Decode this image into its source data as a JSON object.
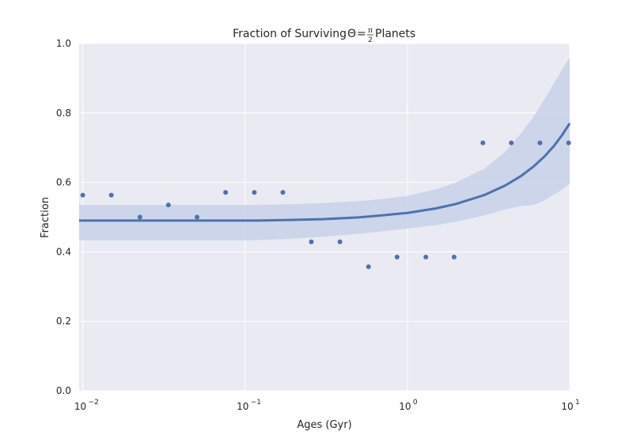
{
  "chart_data": {
    "type": "scatter",
    "title_prefix": "Fraction of Surviving ",
    "title_theta": "Θ",
    "title_eq": "=",
    "title_frac_num": "π",
    "title_frac_den": "2",
    "title_suffix": " Planets",
    "xlabel": "Ages (Gyr)",
    "ylabel": "Fraction",
    "xscale": "log",
    "xlim": [
      0.0095,
      10
    ],
    "ylim": [
      0.0,
      1.0
    ],
    "x_ticks": [
      {
        "value": 0.01,
        "base": "10",
        "exp": "−2"
      },
      {
        "value": 0.1,
        "base": "10",
        "exp": "−1"
      },
      {
        "value": 1,
        "base": "10",
        "exp": "0"
      },
      {
        "value": 10,
        "base": "10",
        "exp": "1"
      }
    ],
    "y_ticks": [
      "0.0",
      "0.2",
      "0.4",
      "0.6",
      "0.8",
      "1.0"
    ],
    "grid": true,
    "colors": {
      "background": "#eaeaf2",
      "grid": "#ffffff",
      "points": "#4c72b0",
      "fit": "#4c72b0",
      "band": "#c2cde6"
    },
    "series": [
      {
        "name": "data",
        "kind": "scatter",
        "x": [
          0.01,
          0.015,
          0.0225,
          0.0337,
          0.0506,
          0.0759,
          0.114,
          0.171,
          0.256,
          0.384,
          0.576,
          0.864,
          1.3,
          1.94,
          2.92,
          4.37,
          6.56,
          9.84
        ],
        "y": [
          0.563,
          0.563,
          0.5,
          0.535,
          0.5,
          0.571,
          0.571,
          0.571,
          0.429,
          0.429,
          0.357,
          0.385,
          0.385,
          0.385,
          0.714,
          0.714,
          0.714,
          0.714
        ]
      },
      {
        "name": "regression fit",
        "kind": "line",
        "x": [
          0.0095,
          0.02,
          0.05,
          0.1,
          0.12,
          0.2,
          0.3,
          0.5,
          0.7,
          1.0,
          1.5,
          2.0,
          3.0,
          4.0,
          5.0,
          6.0,
          7.0,
          8.0,
          9.0,
          10.0
        ],
        "y": [
          0.49,
          0.49,
          0.49,
          0.49,
          0.49,
          0.492,
          0.494,
          0.499,
          0.505,
          0.512,
          0.525,
          0.538,
          0.564,
          0.591,
          0.618,
          0.646,
          0.675,
          0.705,
          0.737,
          0.77
        ]
      },
      {
        "name": "confidence band",
        "kind": "band",
        "x": [
          0.0095,
          0.02,
          0.05,
          0.1,
          0.12,
          0.2,
          0.3,
          0.5,
          0.7,
          1.0,
          1.5,
          2.0,
          3.0,
          4.0,
          5.0,
          6.0,
          7.0,
          8.0,
          9.0,
          10.0
        ],
        "lower": [
          0.433,
          0.433,
          0.433,
          0.433,
          0.434,
          0.438,
          0.443,
          0.452,
          0.459,
          0.467,
          0.477,
          0.487,
          0.505,
          0.522,
          0.532,
          0.535,
          0.548,
          0.565,
          0.58,
          0.595
        ],
        "upper": [
          0.535,
          0.535,
          0.535,
          0.535,
          0.535,
          0.537,
          0.54,
          0.546,
          0.552,
          0.561,
          0.58,
          0.6,
          0.64,
          0.688,
          0.74,
          0.79,
          0.84,
          0.885,
          0.925,
          0.96
        ]
      }
    ]
  }
}
